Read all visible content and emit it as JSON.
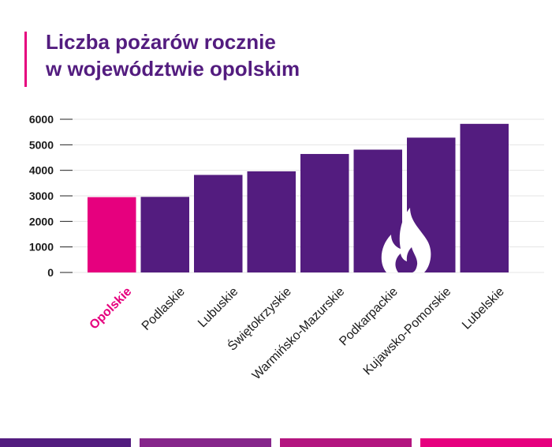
{
  "title_line1": "Liczba pożarów rocznie",
  "title_line2": "w województwie opolskim",
  "colors": {
    "accent": "#e6007e",
    "bar": "#531c7f",
    "title": "#531c7f",
    "footer": [
      "#531c7f",
      "#86268b",
      "#b3157f",
      "#e6007e"
    ]
  },
  "icons": {
    "fire": "flame-icon"
  },
  "chart_data": {
    "type": "bar",
    "title": "Liczba pożarów rocznie w województwie opolskim",
    "xlabel": "",
    "ylabel": "",
    "categories": [
      "Opolskie",
      "Podlaskie",
      "Lubuskie",
      "Świętokrzyskie",
      "Warmińsko-Mazurskie",
      "Podkarpackie",
      "Kujawsko-Pomorskie",
      "Lubelskie"
    ],
    "values": [
      2950,
      2960,
      3820,
      3960,
      4640,
      4810,
      5280,
      5820
    ],
    "highlight": "Opolskie",
    "ylim": [
      0,
      6000
    ],
    "yticks": [
      0,
      1000,
      2000,
      3000,
      4000,
      5000,
      6000
    ],
    "grid": true,
    "legend": "none"
  }
}
